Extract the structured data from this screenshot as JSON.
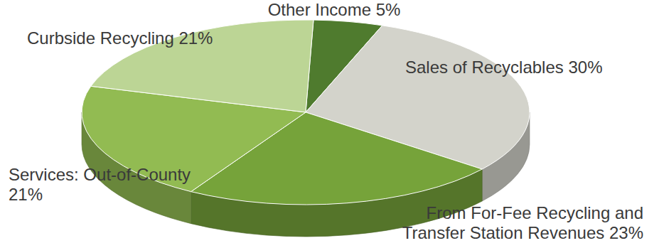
{
  "chart_data": {
    "type": "pie",
    "categories": [
      "Other Income",
      "Sales of Recyclables",
      "From For-Fee Recycling and Transfer Station Revenues",
      "Services: Out-of-County",
      "Curbside Recycling"
    ],
    "values": [
      5,
      30,
      23,
      21,
      21
    ],
    "value_labels": [
      "5%",
      "30%",
      "23%",
      "21%",
      "21%"
    ],
    "colors": [
      "#4f7b2e",
      "#d3d3cb",
      "#76a33a",
      "#92bb52",
      "#bcd595"
    ],
    "data_labels": true
  }
}
